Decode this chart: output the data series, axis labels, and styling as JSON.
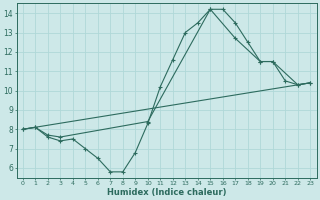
{
  "xlabel": "Humidex (Indice chaleur)",
  "xlim": [
    -0.5,
    23.5
  ],
  "ylim": [
    5.5,
    14.5
  ],
  "xticks": [
    0,
    1,
    2,
    3,
    4,
    5,
    6,
    7,
    8,
    9,
    10,
    11,
    12,
    13,
    14,
    15,
    16,
    17,
    18,
    19,
    20,
    21,
    22,
    23
  ],
  "yticks": [
    6,
    7,
    8,
    9,
    10,
    11,
    12,
    13,
    14
  ],
  "bg_color": "#cde8e8",
  "line_color": "#2d6b5e",
  "grid_color": "#b0d8d8",
  "line1_x": [
    0,
    1,
    2,
    3,
    4,
    5,
    6,
    7,
    8,
    9,
    10,
    11,
    12,
    13,
    14,
    15,
    16,
    17,
    18,
    19,
    20,
    21,
    22,
    23
  ],
  "line1_y": [
    8.0,
    8.1,
    7.6,
    7.4,
    7.5,
    7.0,
    6.5,
    5.8,
    5.8,
    6.8,
    8.3,
    10.2,
    11.6,
    13.0,
    13.5,
    14.2,
    14.2,
    13.5,
    12.5,
    11.5,
    11.5,
    10.5,
    10.3,
    10.4
  ],
  "line2_x": [
    0,
    1,
    2,
    3,
    10,
    15,
    17,
    19,
    20,
    22,
    23
  ],
  "line2_y": [
    8.0,
    8.1,
    7.7,
    7.6,
    8.4,
    14.2,
    12.7,
    11.5,
    11.5,
    10.3,
    10.4
  ],
  "line3_x": [
    0,
    23
  ],
  "line3_y": [
    8.0,
    10.4
  ]
}
